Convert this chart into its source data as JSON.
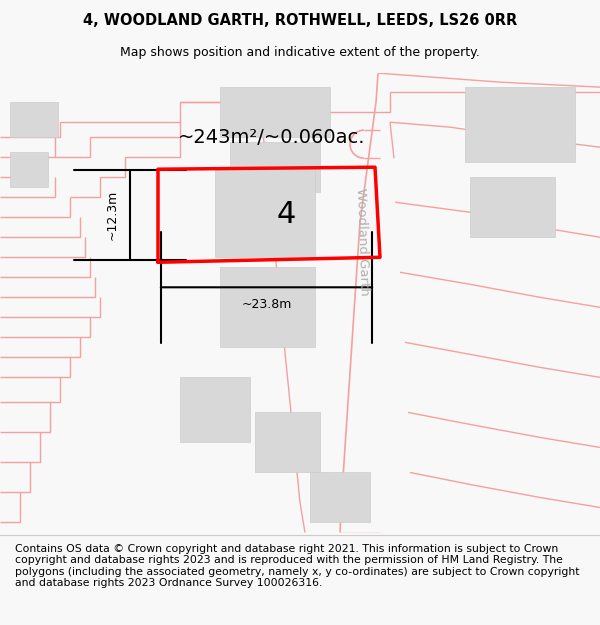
{
  "title_line1": "4, WOODLAND GARTH, ROTHWELL, LEEDS, LS26 0RR",
  "title_line2": "Map shows position and indicative extent of the property.",
  "footer_text": "Contains OS data © Crown copyright and database right 2021. This information is subject to Crown copyright and database rights 2023 and is reproduced with the permission of HM Land Registry. The polygons (including the associated geometry, namely x, y co-ordinates) are subject to Crown copyright and database rights 2023 Ordnance Survey 100026316.",
  "area_label": "~243m²/~0.060ac.",
  "number_label": "4",
  "dim_width": "~23.8m",
  "dim_height": "~12.3m",
  "street_label": "Woodland Garth",
  "bg_color": "#f8f8f8",
  "map_bg": "#ffffff",
  "plot_color": "#ff0000",
  "building_color": "#d8d8d8",
  "building_edge": "#cccccc",
  "road_line_color": "#f5a0a0",
  "street_label_color": "#b0b0b0",
  "title_fontsize": 10.5,
  "subtitle_fontsize": 9.0,
  "footer_fontsize": 7.8,
  "area_fontsize": 14,
  "number_fontsize": 22,
  "dim_fontsize": 9
}
